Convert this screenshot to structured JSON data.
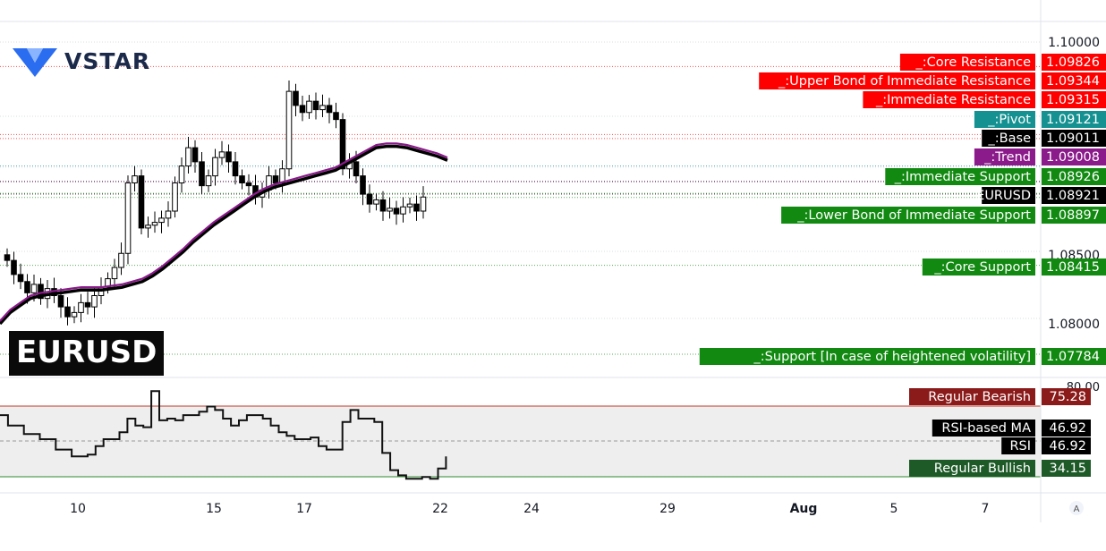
{
  "brand": {
    "name": "VSTAR",
    "symbol": "EURUSD",
    "colors": {
      "logo_dark": "#1b2a4a",
      "logo_blue": "#2b6df0"
    }
  },
  "chart_data": {
    "type": "candlestick",
    "symbol": "EURUSD",
    "price_axis": {
      "ticks": [
        "1.10000",
        "1.08500",
        "1.08000"
      ],
      "range": [
        1.0762,
        1.1017
      ]
    },
    "time_axis": {
      "ticks": [
        "10",
        "15",
        "17",
        "22",
        "24",
        "29",
        "Aug",
        "5",
        "7"
      ]
    },
    "levels": [
      {
        "name": "_:Core Resistance",
        "value": "1.09826",
        "color": "#ff0000"
      },
      {
        "name": "_:Upper Bond of Immediate Resistance",
        "value": "1.09344",
        "color": "#ff0000"
      },
      {
        "name": "_:Immediate Resistance",
        "value": "1.09315",
        "color": "#ff0000"
      },
      {
        "name": "_:Pivot",
        "value": "1.09121",
        "color": "#159191"
      },
      {
        "name": "_:Base",
        "value": "1.09011",
        "color": "#000000"
      },
      {
        "name": "_:Trend",
        "value": "1.09008",
        "color": "#8b1a8b"
      },
      {
        "name": "_:Immediate Support",
        "value": "1.08926",
        "color": "#128a12"
      },
      {
        "name": "EURUSD",
        "value": "1.08921",
        "color": "#000000"
      },
      {
        "name": "_:Lower Bond of Immediate Support",
        "value": "1.08897",
        "color": "#128a12"
      },
      {
        "name": "_:Core Support",
        "value": "1.08415",
        "color": "#128a12"
      },
      {
        "name": "_:Support [In case of heightened volatility]",
        "value": "1.07784",
        "color": "#128a12"
      }
    ],
    "candles_close": [
      1.0845,
      1.0835,
      1.083,
      1.0822,
      1.0828,
      1.0818,
      1.0825,
      1.082,
      1.0812,
      1.0805,
      1.0808,
      1.0815,
      1.0812,
      1.082,
      1.0826,
      1.0832,
      1.084,
      1.085,
      1.09,
      1.0905,
      1.0868,
      1.087,
      1.0872,
      1.0875,
      1.088,
      1.09,
      1.0912,
      1.0925,
      1.0915,
      1.0898,
      1.0905,
      1.0918,
      1.0922,
      1.0915,
      1.0905,
      1.09,
      1.0898,
      1.089,
      1.0895,
      1.0905,
      1.09,
      1.091,
      1.0965,
      1.0955,
      1.095,
      1.0958,
      1.0952,
      1.0955,
      1.095,
      1.0945,
      1.091,
      1.0915,
      1.0905,
      1.0892,
      1.0885,
      1.0888,
      1.088,
      1.0882,
      1.0878,
      1.0883,
      1.0885,
      1.088,
      1.089
    ],
    "ma_fast": [
      1.0802,
      1.081,
      1.0815,
      1.082,
      1.0822,
      1.0823,
      1.0824,
      1.0825,
      1.0826,
      1.0826,
      1.0826,
      1.0827,
      1.0828,
      1.083,
      1.0832,
      1.0836,
      1.0841,
      1.0847,
      1.0853,
      1.086,
      1.0866,
      1.0872,
      1.0877,
      1.0882,
      1.0887,
      1.0892,
      1.0896,
      1.0899,
      1.0901,
      1.0903,
      1.0905,
      1.0907,
      1.0909,
      1.0911,
      1.0915,
      1.0919,
      1.0923,
      1.0927,
      1.0928,
      1.0928,
      1.0927,
      1.0925,
      1.0923,
      1.0921,
      1.0918
    ],
    "ma_slow": [
      1.08,
      1.0808,
      1.0813,
      1.0818,
      1.082,
      1.0821,
      1.0822,
      1.0823,
      1.0824,
      1.0824,
      1.0824,
      1.0825,
      1.0826,
      1.0828,
      1.083,
      1.0834,
      1.0839,
      1.0845,
      1.0851,
      1.0858,
      1.0864,
      1.087,
      1.0875,
      1.088,
      1.0885,
      1.089,
      1.0894,
      1.0897,
      1.0899,
      1.0901,
      1.0903,
      1.0905,
      1.0907,
      1.0909,
      1.0913,
      1.0917,
      1.0921,
      1.0925,
      1.0926,
      1.0926,
      1.0925,
      1.0923,
      1.0921,
      1.0919,
      1.0916
    ],
    "rsi": {
      "range": [
        25,
        85
      ],
      "tick": "80.00",
      "bands": [
        {
          "name": "Regular Bearish",
          "value": "75.28",
          "color": "#8b1a1a"
        },
        {
          "name": "RSI-based MA",
          "value": "46.92",
          "color": "#000000"
        },
        {
          "name": "RSI",
          "value": "46.92",
          "color": "#000000"
        },
        {
          "name": "Regular Bullish",
          "value": "34.15",
          "color": "#1e5a28"
        }
      ],
      "values": [
        70,
        64,
        64,
        59,
        59,
        56,
        56,
        50,
        50,
        46,
        46,
        47,
        52,
        56,
        56,
        60,
        68,
        64,
        63,
        84,
        67,
        68,
        67,
        70,
        70,
        72,
        75,
        73,
        68,
        64,
        67,
        70,
        70,
        68,
        64,
        60,
        58,
        56,
        56,
        57,
        52,
        50,
        50,
        66,
        73,
        68,
        68,
        66,
        48,
        38,
        35,
        33,
        33,
        34,
        33,
        39,
        46
      ]
    }
  }
}
